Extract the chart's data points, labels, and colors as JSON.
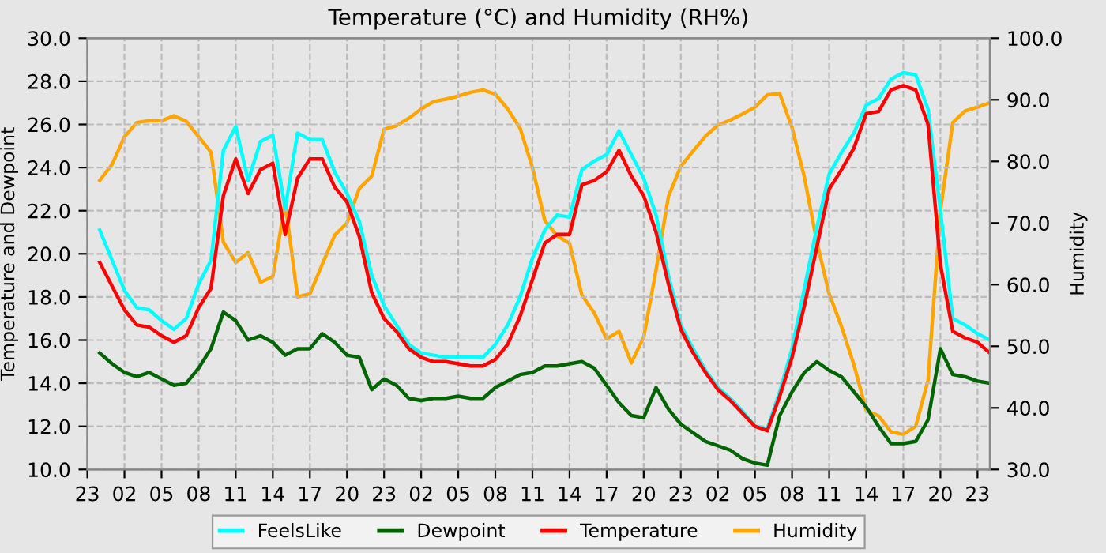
{
  "chart_data": {
    "type": "line",
    "title": "Temperature (°C) and Humidity (RH%)",
    "ylabel": "Temperature and Dewpoint",
    "y2label": "Humidity",
    "categories": [
      "23",
      null,
      null,
      "02",
      null,
      null,
      "05",
      null,
      null,
      "08",
      null,
      null,
      "11",
      null,
      null,
      "14",
      null,
      null,
      "17",
      null,
      null,
      "20",
      null,
      null,
      "23",
      null,
      null,
      "02",
      null,
      null,
      "05",
      null,
      null,
      "08",
      null,
      null,
      "11",
      null,
      null,
      "14",
      null,
      null,
      "17",
      null,
      null,
      "20",
      null,
      null,
      "23",
      null,
      null,
      "02",
      null,
      null,
      "05",
      null,
      null,
      "08",
      null,
      null,
      "11",
      null,
      null,
      "14",
      null,
      null,
      "17",
      null,
      null,
      "20",
      null,
      null,
      "23",
      null
    ],
    "series": [
      {
        "name": "FeelsLike",
        "color": "#00ffff",
        "values": [
          null,
          21.1,
          19.7,
          18.3,
          17.5,
          17.4,
          16.9,
          16.5,
          17.0,
          18.6,
          19.7,
          24.8,
          25.9,
          23.4,
          25.2,
          25.5,
          22.1,
          25.6,
          25.3,
          25.3,
          23.8,
          22.8,
          21.5,
          19.0,
          17.6,
          16.7,
          15.8,
          15.4,
          15.3,
          15.2,
          15.2,
          15.2,
          15.2,
          15.8,
          16.7,
          18.0,
          19.8,
          21.1,
          21.8,
          21.7,
          23.9,
          24.3,
          24.6,
          25.7,
          24.6,
          23.5,
          21.8,
          19.0,
          16.7,
          15.6,
          14.6,
          13.8,
          13.3,
          12.7,
          12.0,
          11.9,
          13.6,
          15.6,
          18.4,
          21.2,
          23.7,
          24.7,
          25.6,
          26.9,
          27.2,
          28.1,
          28.4,
          28.3,
          26.7,
          22.0,
          17.0,
          16.7,
          16.3,
          16.0
        ]
      },
      {
        "name": "Dewpoint",
        "color": "#006400",
        "values": [
          null,
          15.4,
          14.9,
          14.5,
          14.3,
          14.5,
          14.2,
          13.9,
          14.0,
          14.7,
          15.6,
          17.3,
          16.9,
          16.0,
          16.2,
          15.9,
          15.3,
          15.6,
          15.6,
          16.3,
          15.9,
          15.3,
          15.2,
          13.7,
          14.2,
          13.9,
          13.3,
          13.2,
          13.3,
          13.3,
          13.4,
          13.3,
          13.3,
          13.8,
          14.1,
          14.4,
          14.5,
          14.8,
          14.8,
          14.9,
          15.0,
          14.7,
          13.9,
          13.1,
          12.5,
          12.4,
          13.8,
          12.8,
          12.1,
          11.7,
          11.3,
          11.1,
          10.9,
          10.5,
          10.3,
          10.2,
          12.5,
          13.6,
          14.5,
          15.0,
          14.6,
          14.3,
          13.6,
          12.9,
          12.0,
          11.2,
          11.2,
          11.3,
          12.3,
          15.6,
          14.4,
          14.3,
          14.1,
          14.0
        ]
      },
      {
        "name": "Temperature",
        "color": "#ff0000",
        "values": [
          null,
          19.6,
          18.5,
          17.4,
          16.7,
          16.6,
          16.2,
          15.9,
          16.2,
          17.5,
          18.4,
          22.7,
          24.4,
          22.8,
          23.9,
          24.2,
          20.9,
          23.5,
          24.4,
          24.4,
          23.1,
          22.4,
          20.8,
          18.2,
          17.0,
          16.4,
          15.6,
          15.2,
          15.0,
          15.0,
          14.9,
          14.8,
          14.8,
          15.1,
          15.8,
          17.1,
          18.8,
          20.5,
          20.9,
          20.9,
          23.2,
          23.4,
          23.8,
          24.8,
          23.6,
          22.7,
          21.0,
          18.6,
          16.5,
          15.4,
          14.5,
          13.7,
          13.2,
          12.6,
          12.0,
          11.8,
          13.4,
          15.2,
          17.6,
          20.3,
          23.0,
          23.9,
          24.9,
          26.5,
          26.6,
          27.6,
          27.8,
          27.6,
          26.0,
          19.5,
          16.4,
          16.1,
          15.9,
          15.4
        ]
      },
      {
        "name": "Humidity",
        "color": "#ffa500",
        "axis": "y2",
        "values": [
          null,
          76.9,
          79.5,
          84.0,
          86.3,
          86.6,
          86.6,
          87.4,
          86.5,
          84.0,
          81.5,
          66.9,
          63.6,
          65.2,
          60.4,
          61.3,
          73.3,
          58.0,
          58.5,
          63.3,
          68.0,
          70.0,
          75.6,
          77.6,
          85.2,
          85.8,
          87.0,
          88.5,
          89.7,
          90.1,
          90.6,
          91.2,
          91.6,
          90.9,
          88.5,
          85.4,
          79.0,
          70.4,
          67.9,
          66.7,
          58.3,
          55.4,
          51.2,
          52.4,
          47.3,
          51.5,
          62.4,
          74.3,
          79.2,
          81.7,
          84.1,
          85.9,
          86.7,
          87.7,
          88.8,
          90.8,
          91.0,
          85.5,
          77.4,
          67.0,
          58.5,
          53.2,
          47.0,
          39.6,
          38.7,
          36.1,
          35.7,
          37.0,
          44.5,
          72.0,
          86.3,
          88.2,
          88.8,
          89.5
        ]
      }
    ],
    "ylim": [
      10,
      30
    ],
    "yticks": [
      {
        "value": 10,
        "label": "10.0"
      },
      {
        "value": 12,
        "label": "12.0"
      },
      {
        "value": 14,
        "label": "14.0"
      },
      {
        "value": 16,
        "label": "16.0"
      },
      {
        "value": 18,
        "label": "18.0"
      },
      {
        "value": 20,
        "label": "20.0"
      },
      {
        "value": 22,
        "label": "22.0"
      },
      {
        "value": 24,
        "label": "24.0"
      },
      {
        "value": 26,
        "label": "26.0"
      },
      {
        "value": 28,
        "label": "28.0"
      },
      {
        "value": 30,
        "label": "30.0"
      }
    ],
    "y2lim": [
      30,
      100
    ],
    "y2ticks": [
      {
        "value": 30,
        "label": "30.0"
      },
      {
        "value": 40,
        "label": "40.0"
      },
      {
        "value": 50,
        "label": "50.0"
      },
      {
        "value": 60,
        "label": "60.0"
      },
      {
        "value": 70,
        "label": "70.0"
      },
      {
        "value": 80,
        "label": "80.0"
      },
      {
        "value": 90,
        "label": "90.0"
      },
      {
        "value": 100,
        "label": "100.0"
      }
    ],
    "grid": true,
    "legend": "bottom",
    "line_style": "solid"
  }
}
